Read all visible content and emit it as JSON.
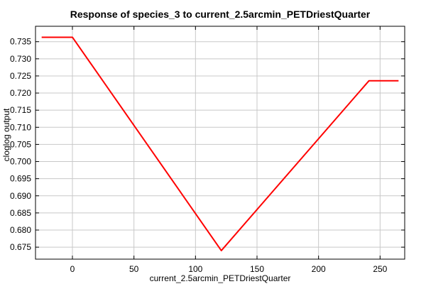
{
  "chart_data": {
    "type": "line",
    "title": "Response of species_3 to current_2.5arcmin_PETDriestQuarter",
    "xlabel": "current_2.5arcmin_PETDriestQuarter",
    "ylabel": "cloglog output",
    "xlim": [
      -30,
      270
    ],
    "ylim": [
      0.6715,
      0.7395
    ],
    "xticks": [
      0,
      50,
      100,
      150,
      200,
      250
    ],
    "yticks": [
      0.675,
      0.68,
      0.685,
      0.69,
      0.695,
      0.7,
      0.705,
      0.71,
      0.715,
      0.72,
      0.725,
      0.73,
      0.735
    ],
    "xtick_labels": [
      "0",
      "50",
      "100",
      "150",
      "200",
      "250"
    ],
    "ytick_labels": [
      "0.675",
      "0.680",
      "0.685",
      "0.690",
      "0.695",
      "0.700",
      "0.705",
      "0.710",
      "0.715",
      "0.720",
      "0.725",
      "0.730",
      "0.735"
    ],
    "grid": true,
    "color": "#ff0000",
    "series": [
      {
        "x": [
          -25,
          0,
          121,
          241,
          265
        ],
        "y": [
          0.7363,
          0.7363,
          0.674,
          0.7236,
          0.7236
        ]
      }
    ]
  }
}
